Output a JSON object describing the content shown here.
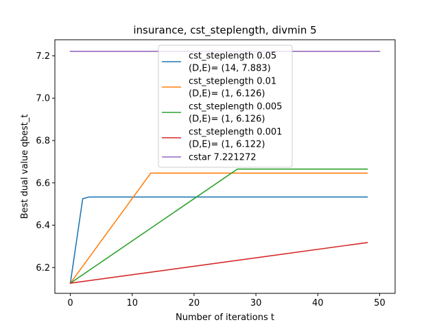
{
  "chart_data": {
    "type": "line",
    "title": "insurance, cst_steplength, divmin 5",
    "xlabel": "Number of iterations t",
    "ylabel": "Best dual value qbest_t",
    "xlim": [
      -2.5,
      52.5
    ],
    "ylim": [
      6.078,
      7.276
    ],
    "xticks": [
      0,
      10,
      20,
      30,
      40,
      50
    ],
    "xtick_labels": [
      "0",
      "10",
      "20",
      "30",
      "40",
      "50"
    ],
    "yticks": [
      6.2,
      6.4,
      6.6,
      6.8,
      7.0,
      7.2
    ],
    "ytick_labels": [
      "6.2",
      "6.4",
      "6.6",
      "6.8",
      "7.0",
      "7.2"
    ],
    "grid": false,
    "legend_position": "top-center",
    "series": [
      {
        "name": "cst_steplength 0.05\n(D,E)= (14, 7.883)",
        "legend_lines": [
          "cst_steplength 0.05",
          "(D,E)= (14, 7.883)"
        ],
        "color": "#1f77b4",
        "x": [
          0,
          2,
          3,
          48
        ],
        "y": [
          6.126,
          6.525,
          6.533,
          6.533
        ]
      },
      {
        "name": "cst_steplength 0.01\n(D,E)= (1, 6.126)",
        "legend_lines": [
          "cst_steplength 0.01",
          "(D,E)= (1, 6.126)"
        ],
        "color": "#ff7f0e",
        "x": [
          0,
          13,
          48
        ],
        "y": [
          6.126,
          6.646,
          6.646
        ]
      },
      {
        "name": "cst_steplength 0.005\n(D,E)= (1, 6.126)",
        "legend_lines": [
          "cst_steplength 0.005",
          "(D,E)= (1, 6.126)"
        ],
        "color": "#2ca02c",
        "x": [
          0,
          27,
          48
        ],
        "y": [
          6.126,
          6.665,
          6.665
        ]
      },
      {
        "name": "cst_steplength 0.001\n(D,E)= (1, 6.122)",
        "legend_lines": [
          "cst_steplength 0.001",
          "(D,E)= (1, 6.122)"
        ],
        "color": "#d62728",
        "x": [
          0,
          48
        ],
        "y": [
          6.126,
          6.318
        ]
      },
      {
        "name": "cstar 7.221272",
        "legend_lines": [
          "cstar 7.221272"
        ],
        "color": "#9467bd",
        "x": [
          0,
          50
        ],
        "y": [
          7.221272,
          7.221272
        ]
      }
    ]
  }
}
